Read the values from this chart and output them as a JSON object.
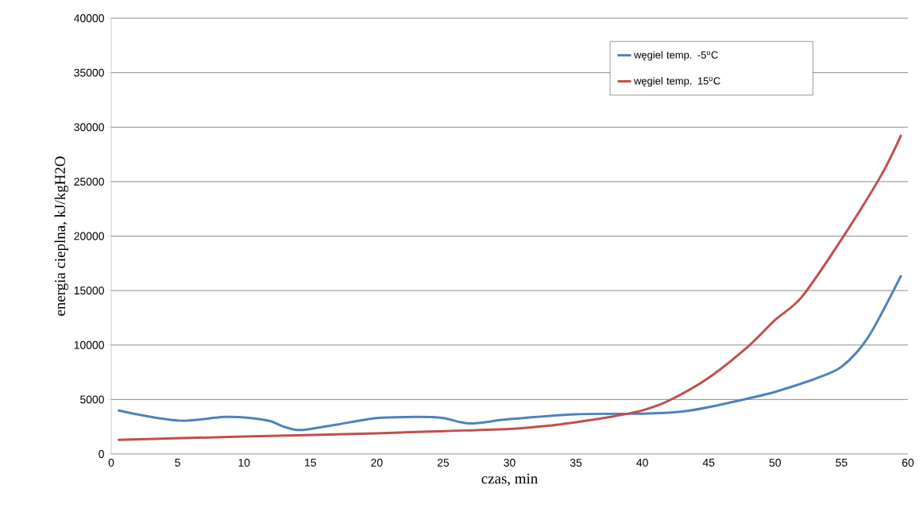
{
  "chart_data": {
    "type": "line",
    "xlabel": "czas, min",
    "ylabel": "energia cieplna, kJ/kgH2O",
    "xlim": [
      0,
      60
    ],
    "ylim": [
      0,
      40000
    ],
    "xticks": [
      0,
      5,
      10,
      15,
      20,
      25,
      30,
      35,
      40,
      45,
      50,
      55,
      60
    ],
    "yticks": [
      0,
      5000,
      10000,
      15000,
      20000,
      25000,
      30000,
      35000,
      40000
    ],
    "grid": "y",
    "legend": "top right",
    "marker": "none",
    "line_style": "solid",
    "series": [
      {
        "name": "węgiel temp. -5$^{o}$C",
        "color": "#4f81bd",
        "x": [
          0.5,
          3,
          5.5,
          8.5,
          10.5,
          12,
          13,
          14,
          15,
          17,
          20,
          23,
          25,
          27,
          30,
          35,
          40,
          43,
          45,
          48,
          50,
          53,
          55,
          57,
          59.5
        ],
        "values": [
          4000,
          3400,
          3050,
          3400,
          3300,
          3000,
          2500,
          2200,
          2300,
          2700,
          3300,
          3400,
          3300,
          2800,
          3200,
          3650,
          3700,
          3900,
          4300,
          5100,
          5700,
          6900,
          8000,
          10700,
          16400
        ]
      },
      {
        "name": "węgiel temp. 15$^{o}$C",
        "color": "#c0504d",
        "x": [
          0.5,
          10,
          20,
          25,
          30,
          33,
          36,
          38,
          40,
          42,
          45,
          48,
          50,
          52,
          55,
          58,
          59.5
        ],
        "values": [
          1300,
          1600,
          1900,
          2100,
          2300,
          2600,
          3100,
          3500,
          4000,
          4900,
          7000,
          9900,
          12300,
          14400,
          19700,
          25600,
          29300
        ]
      }
    ]
  }
}
